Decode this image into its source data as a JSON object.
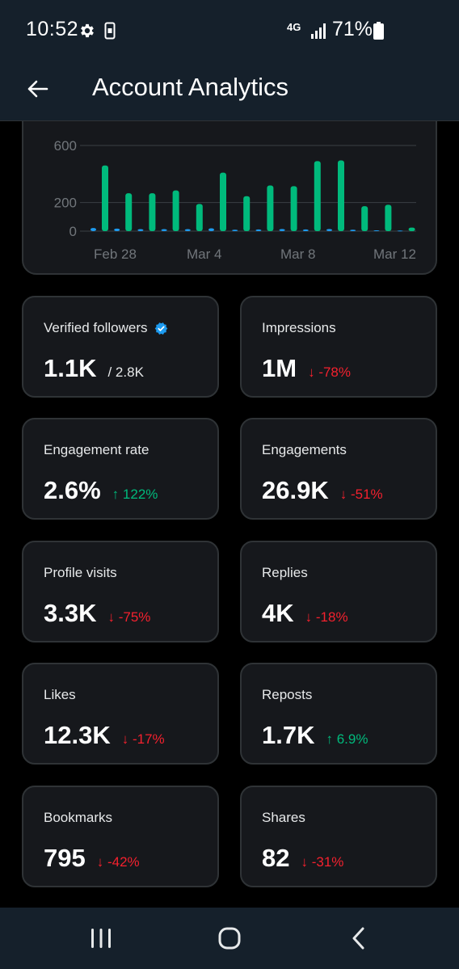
{
  "status_bar": {
    "time": "10:52",
    "network": "4G",
    "battery": "71%",
    "icons": [
      "gear-icon",
      "phone-icon",
      "signal-icon",
      "battery-icon"
    ]
  },
  "header": {
    "title": "Account Analytics",
    "back_icon": "arrow-left-icon"
  },
  "chart_data": {
    "type": "bar",
    "y_ticks": [
      "600",
      "200",
      "0"
    ],
    "x_ticks": [
      "Feb 28",
      "Mar 4",
      "Mar 8",
      "Mar 12"
    ],
    "ylim": [
      0,
      600
    ],
    "grid": true,
    "series": [
      {
        "color": "#00ba7c",
        "values": [
          460,
          265,
          265,
          285,
          190,
          410,
          245,
          320,
          315,
          490,
          495,
          175,
          185,
          25
        ]
      },
      {
        "color": "#1d9bf0",
        "values": [
          22,
          18,
          14,
          14,
          14,
          20,
          10,
          12,
          15,
          12,
          15,
          10,
          6,
          4
        ]
      }
    ]
  },
  "metrics": [
    {
      "label": "Verified followers",
      "value": "1.1K",
      "sub": "/ 2.8K",
      "delta": "",
      "direction": "",
      "verified": true
    },
    {
      "label": "Impressions",
      "value": "1M",
      "sub": "",
      "delta": "-78%",
      "direction": "down"
    },
    {
      "label": "Engagement rate",
      "value": "2.6%",
      "sub": "",
      "delta": "122%",
      "direction": "up"
    },
    {
      "label": "Engagements",
      "value": "26.9K",
      "sub": "",
      "delta": "-51%",
      "direction": "down"
    },
    {
      "label": "Profile visits",
      "value": "3.3K",
      "sub": "",
      "delta": "-75%",
      "direction": "down"
    },
    {
      "label": "Replies",
      "value": "4K",
      "sub": "",
      "delta": "-18%",
      "direction": "down"
    },
    {
      "label": "Likes",
      "value": "12.3K",
      "sub": "",
      "delta": "-17%",
      "direction": "down"
    },
    {
      "label": "Reposts",
      "value": "1.7K",
      "sub": "",
      "delta": "6.9%",
      "direction": "up"
    },
    {
      "label": "Bookmarks",
      "value": "795",
      "sub": "",
      "delta": "-42%",
      "direction": "down"
    },
    {
      "label": "Shares",
      "value": "82",
      "sub": "",
      "delta": "-31%",
      "direction": "down"
    }
  ],
  "colors": {
    "up": "#00ba7c",
    "down": "#f4212e",
    "verified": "#1d9bf0"
  },
  "nav_bar": {
    "icons": [
      "recent-apps-icon",
      "home-icon",
      "back-icon"
    ]
  }
}
